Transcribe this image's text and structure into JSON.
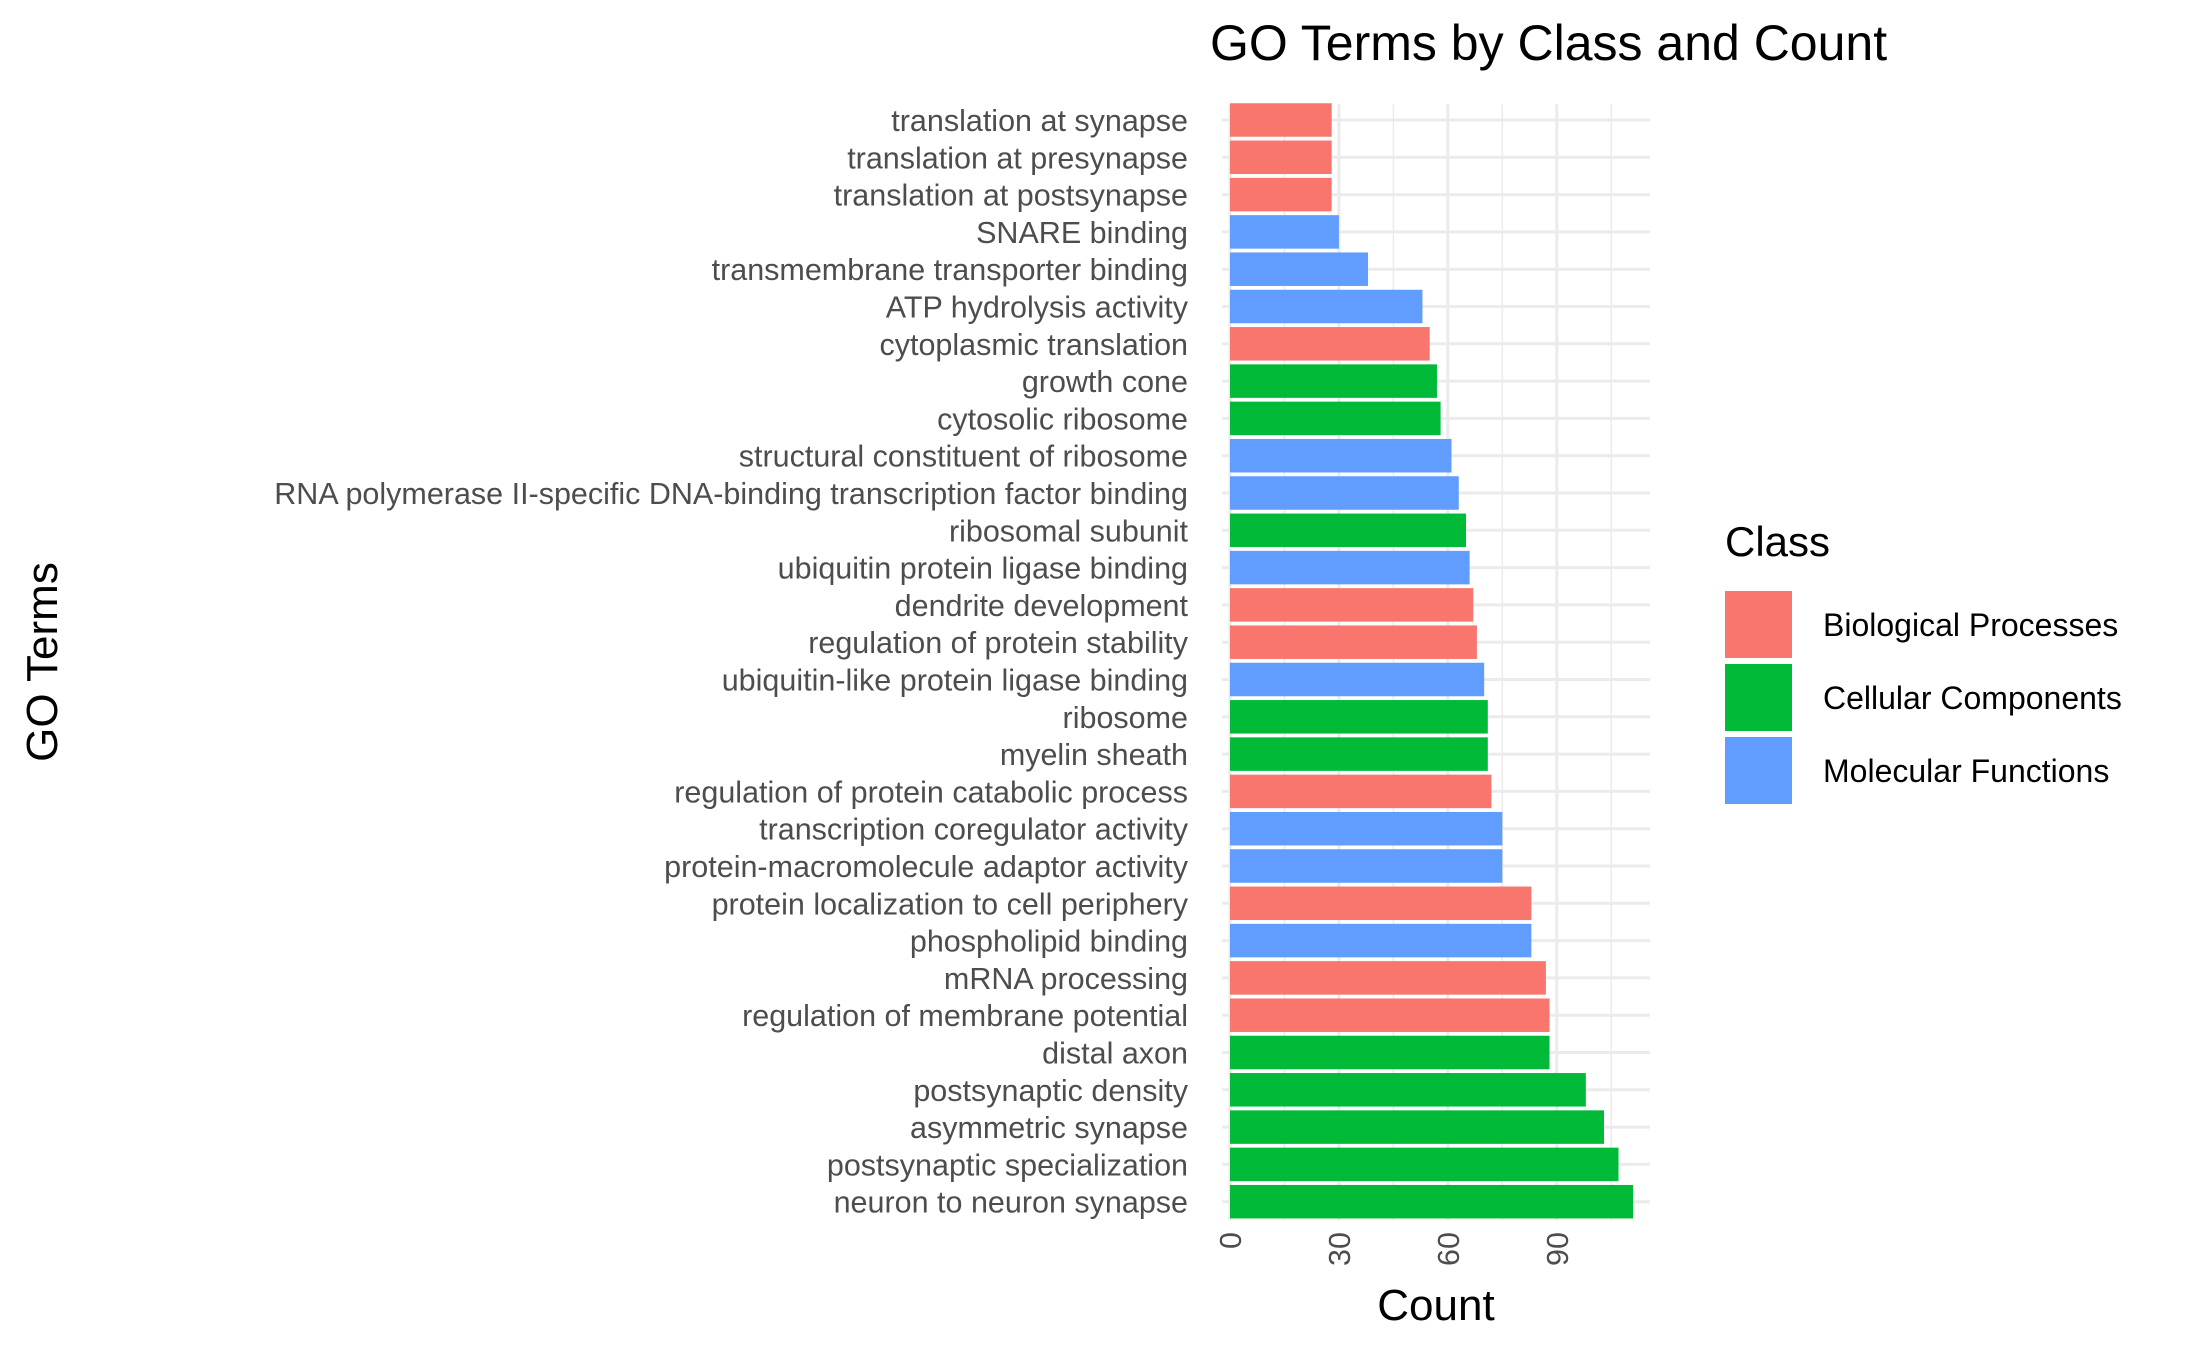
{
  "chart_data": {
    "type": "bar",
    "orientation": "horizontal",
    "title": "GO Terms by Class and Count",
    "xlabel": "Count",
    "ylabel": "GO Terms",
    "xlim": [
      0,
      116
    ],
    "xticks": [
      0,
      30,
      60,
      90
    ],
    "grid": true,
    "legend": {
      "title": "Class",
      "placement": "right",
      "entries": [
        {
          "name": "Biological Processes",
          "color": "#F8766D"
        },
        {
          "name": "Cellular Components",
          "color": "#00BA38"
        },
        {
          "name": "Molecular Functions",
          "color": "#619CFF"
        }
      ]
    },
    "categories": [
      "translation at synapse",
      "translation at presynapse",
      "translation at postsynapse",
      "SNARE binding",
      "transmembrane transporter binding",
      "ATP hydrolysis activity",
      "cytoplasmic translation",
      "growth cone",
      "cytosolic ribosome",
      "structural constituent of ribosome",
      "RNA polymerase II-specific DNA-binding transcription factor binding",
      "ribosomal subunit",
      "ubiquitin protein ligase binding",
      "dendrite development",
      "regulation of protein stability",
      "ubiquitin-like protein ligase binding",
      "ribosome",
      "myelin sheath",
      "regulation of protein catabolic process",
      "transcription coregulator activity",
      "protein-macromolecule adaptor activity",
      "protein localization to cell periphery",
      "phospholipid binding",
      "mRNA processing",
      "regulation of membrane potential",
      "distal axon",
      "postsynaptic density",
      "asymmetric synapse",
      "postsynaptic specialization",
      "neuron to neuron synapse"
    ],
    "values": [
      28,
      28,
      28,
      30,
      38,
      53,
      55,
      57,
      58,
      61,
      63,
      65,
      66,
      67,
      68,
      70,
      71,
      71,
      72,
      75,
      75,
      83,
      83,
      87,
      88,
      88,
      98,
      103,
      107,
      111
    ],
    "classes": [
      "Biological Processes",
      "Biological Processes",
      "Biological Processes",
      "Molecular Functions",
      "Molecular Functions",
      "Molecular Functions",
      "Biological Processes",
      "Cellular Components",
      "Cellular Components",
      "Molecular Functions",
      "Molecular Functions",
      "Cellular Components",
      "Molecular Functions",
      "Biological Processes",
      "Biological Processes",
      "Molecular Functions",
      "Cellular Components",
      "Cellular Components",
      "Biological Processes",
      "Molecular Functions",
      "Molecular Functions",
      "Biological Processes",
      "Molecular Functions",
      "Biological Processes",
      "Biological Processes",
      "Cellular Components",
      "Cellular Components",
      "Cellular Components",
      "Cellular Components",
      "Cellular Components"
    ]
  }
}
